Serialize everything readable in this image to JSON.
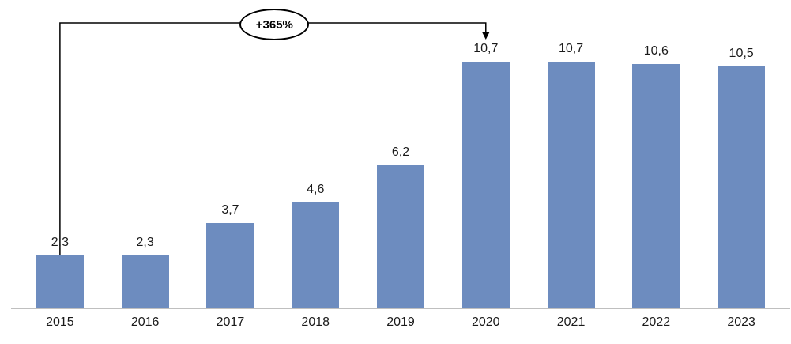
{
  "chart_data": {
    "type": "bar",
    "categories": [
      "2015",
      "2016",
      "2017",
      "2018",
      "2019",
      "2020",
      "2021",
      "2022",
      "2023"
    ],
    "values": [
      2.3,
      2.3,
      3.7,
      4.6,
      6.2,
      10.7,
      10.7,
      10.6,
      10.5
    ],
    "value_labels": [
      "2,3",
      "2,3",
      "3,7",
      "4,6",
      "6,2",
      "10,7",
      "10,7",
      "10,6",
      "10,5"
    ],
    "title": "",
    "xlabel": "",
    "ylabel": "",
    "ylim": [
      0,
      11.5
    ],
    "grid": false,
    "legend": false,
    "bar_color": "#6d8cbf",
    "text_color": "#1a1a1a",
    "axis_color": "#bfbfbf",
    "annotation": {
      "label": "+365%",
      "from_category": "2015",
      "to_category": "2020"
    }
  }
}
